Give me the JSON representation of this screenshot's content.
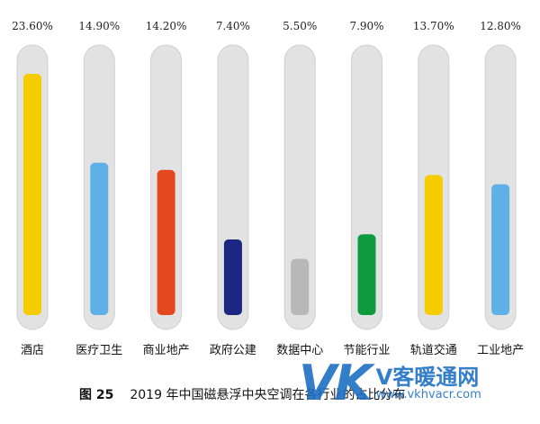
{
  "chart_data": {
    "type": "bar",
    "orientation": "vertical",
    "categories": [
      "酒店",
      "医疗卫生",
      "商业地产",
      "政府公建",
      "数据中心",
      "节能行业",
      "轨道交通",
      "工业地产"
    ],
    "values": [
      23.6,
      14.9,
      14.2,
      7.4,
      5.5,
      7.9,
      13.7,
      12.8
    ],
    "value_labels": [
      "23.60%",
      "14.90%",
      "14.20%",
      "7.40%",
      "5.50%",
      "7.90%",
      "13.70%",
      "12.80%"
    ],
    "colors": [
      "#f5cc00",
      "#5fb0e6",
      "#e4481f",
      "#1c2683",
      "#b8b8b8",
      "#0e9a3e",
      "#f5cc00",
      "#5fb0e6"
    ],
    "track_color": "#e2e2e2",
    "ylim": [
      0,
      25
    ],
    "grid": false,
    "legend": "none",
    "caption": "图 25　2019 年中国磁悬浮中央空调在各行业的占比分布"
  },
  "caption": {
    "figure_no": "图 25",
    "text": "2019 年中国磁悬浮中央空调在各行业的占比分布"
  },
  "watermark": {
    "logo_text": "VK",
    "brand": "V客暖通网",
    "url": "www.vkhvacr.com"
  }
}
